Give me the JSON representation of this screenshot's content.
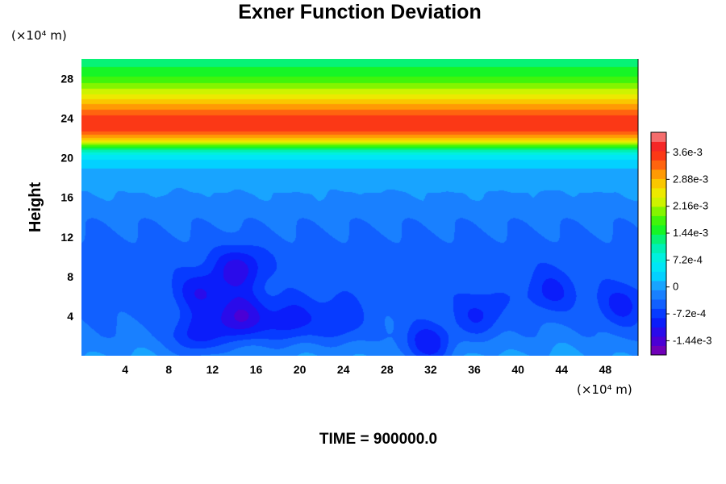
{
  "chart_data": {
    "type": "heatmap",
    "title": "Exner Function Deviation",
    "ylabel": "Height",
    "xlabel": "",
    "x_unit": "(×10⁴ m)",
    "y_unit": "(×10⁴ m)",
    "xlim": [
      0,
      51
    ],
    "ylim": [
      0,
      30
    ],
    "x_ticks": [
      "4",
      "8",
      "12",
      "16",
      "20",
      "24",
      "28",
      "32",
      "36",
      "40",
      "44",
      "48"
    ],
    "y_ticks": [
      "4",
      "8",
      "12",
      "16",
      "20",
      "24",
      "28"
    ],
    "colorbar": {
      "min": -0.00182,
      "max": 0.00414,
      "tick_values": [
        0.0036,
        0.00288,
        0.00216,
        0.00144,
        0.00072,
        0,
        -0.00072,
        -0.00144
      ],
      "tick_labels": [
        "3.6e-3",
        "2.88e-3",
        "2.16e-3",
        "1.44e-3",
        "7.2e-4",
        "0",
        "-7.2e-4",
        "-1.44e-3"
      ]
    },
    "profile": {
      "height": [
        0,
        2,
        6,
        10,
        13.5,
        16.5,
        18.5,
        19.6,
        20.4,
        21.0,
        21.8,
        22.8,
        24.0,
        25.0,
        26.0,
        27.0,
        28.0,
        29.0,
        30.0
      ],
      "value": [
        -0.0001,
        -0.0003,
        -0.00045,
        -0.00045,
        -0.0003,
        -8e-05,
        8e-05,
        0.0003,
        0.00072,
        0.00144,
        0.0027,
        0.0035,
        0.0035,
        0.0031,
        0.0026,
        0.00216,
        0.00172,
        0.00144,
        0.00126
      ]
    },
    "features": [
      {
        "type": "low",
        "x": 14.5,
        "y": 3.8,
        "value": -0.0011
      },
      {
        "type": "low",
        "x": 14.5,
        "y": 8.8,
        "value": -0.00085
      },
      {
        "type": "low",
        "x": 11,
        "y": 6.5,
        "value": -0.0007
      },
      {
        "type": "low",
        "x": 10.5,
        "y": 2,
        "value": -0.00075
      },
      {
        "type": "low",
        "x": 19,
        "y": 3.5,
        "value": -0.00075
      },
      {
        "type": "low",
        "x": 23.5,
        "y": 3.5,
        "value": -0.0006
      },
      {
        "type": "low",
        "x": 31.7,
        "y": 1,
        "value": -0.0009
      },
      {
        "type": "low",
        "x": 36.5,
        "y": 4,
        "value": -0.0006
      },
      {
        "type": "low",
        "x": 49.5,
        "y": 5,
        "value": -0.0006
      },
      {
        "type": "low",
        "x": 43,
        "y": 6.5,
        "value": -0.00055
      },
      {
        "type": "high",
        "x": 5,
        "y": 0.6,
        "value": -5e-05
      },
      {
        "type": "high",
        "x": 21,
        "y": 0.6,
        "value": -5e-05
      },
      {
        "type": "high",
        "x": 37,
        "y": 0.8,
        "value": 0
      },
      {
        "type": "high",
        "x": 44,
        "y": 0.8,
        "value": 0
      }
    ]
  },
  "time_label": "TIME = 900000.0"
}
